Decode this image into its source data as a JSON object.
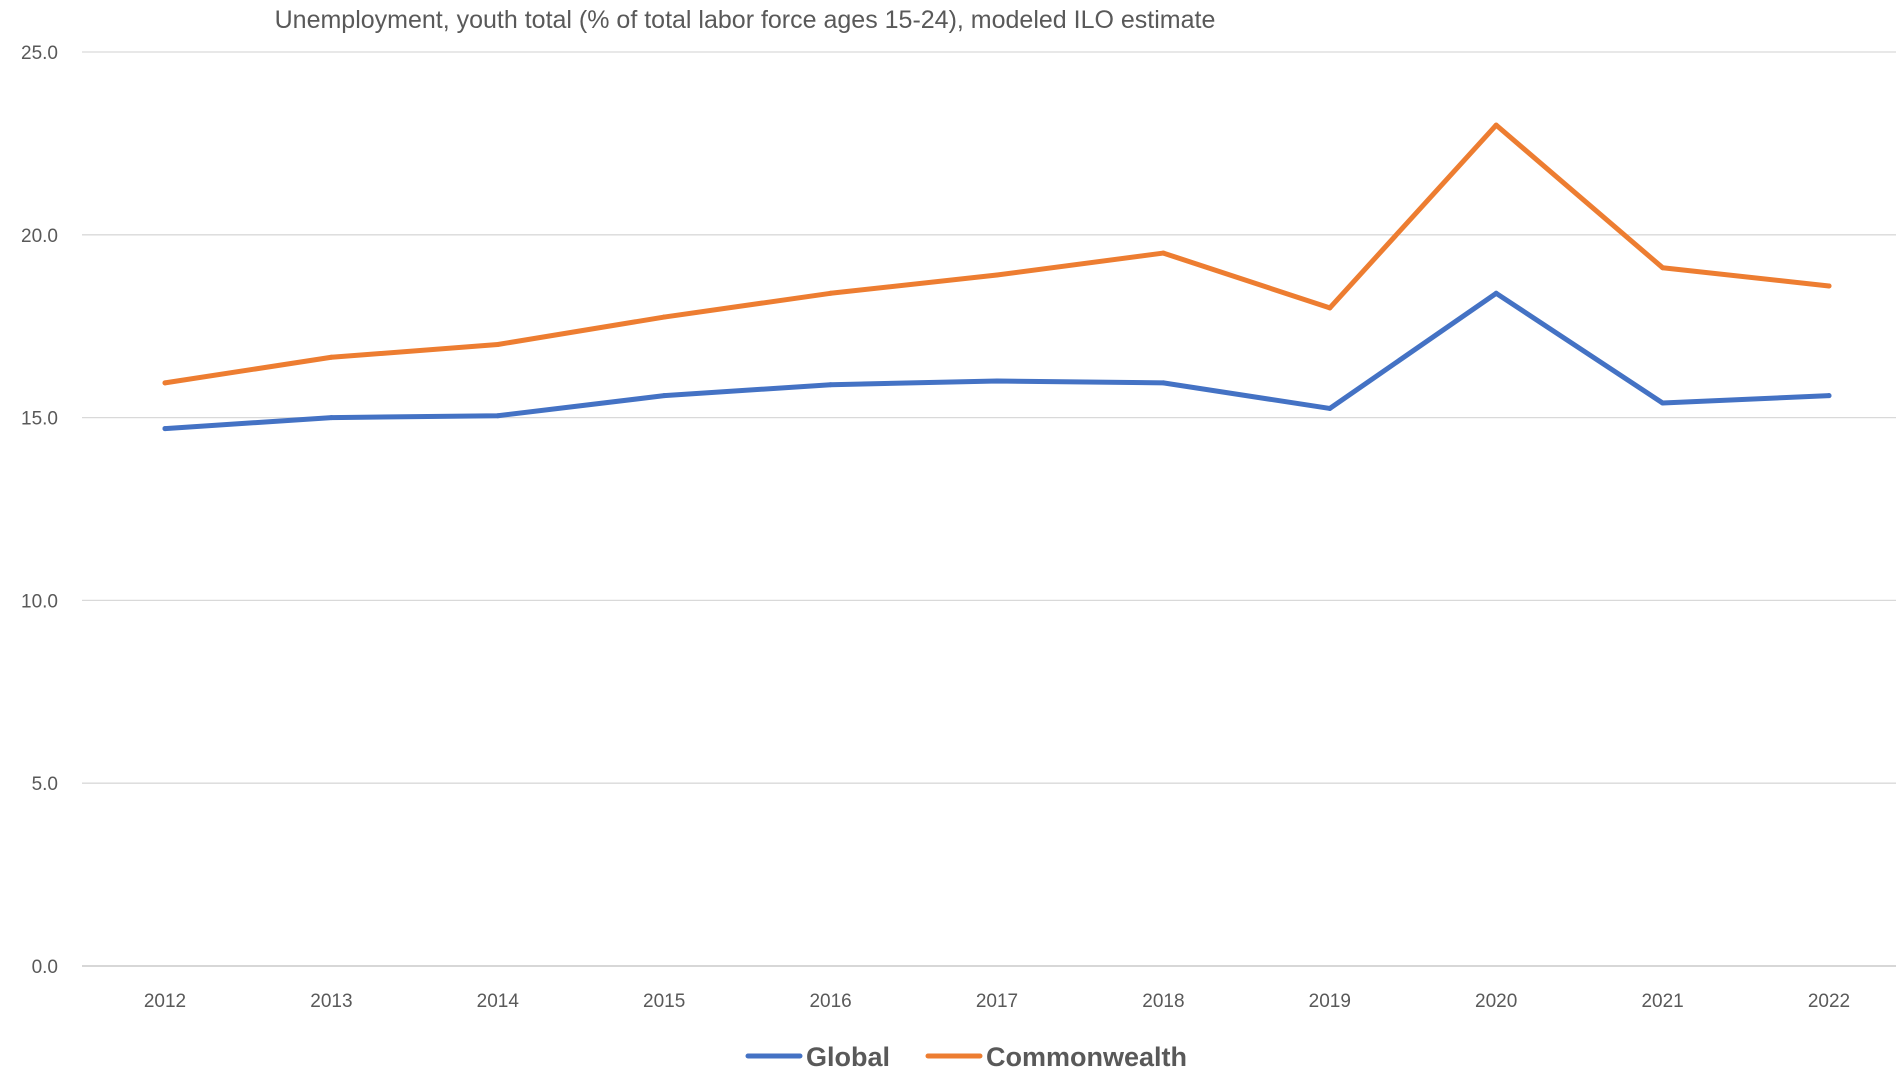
{
  "chart_data": {
    "type": "line",
    "title": "Unemployment, youth total (% of total labor force ages 15-24), modeled ILO estimate",
    "xlabel": "",
    "ylabel": "",
    "categories": [
      "2012",
      "2013",
      "2014",
      "2015",
      "2016",
      "2017",
      "2018",
      "2019",
      "2020",
      "2021",
      "2022"
    ],
    "y_ticks": [
      "0.0",
      "5.0",
      "10.0",
      "15.0",
      "20.0",
      "25.0"
    ],
    "ylim": [
      0,
      25
    ],
    "grid": true,
    "legend_position": "bottom",
    "series": [
      {
        "name": "Global",
        "color": "#4472c4",
        "values": [
          14.7,
          15.0,
          15.05,
          15.6,
          15.9,
          16.0,
          15.95,
          15.25,
          18.4,
          15.4,
          15.6
        ]
      },
      {
        "name": "Commonwealth",
        "color": "#ed7d31",
        "values": [
          15.95,
          16.65,
          17.0,
          17.75,
          18.4,
          18.9,
          19.5,
          18.0,
          23.0,
          19.1,
          18.6
        ]
      }
    ]
  }
}
